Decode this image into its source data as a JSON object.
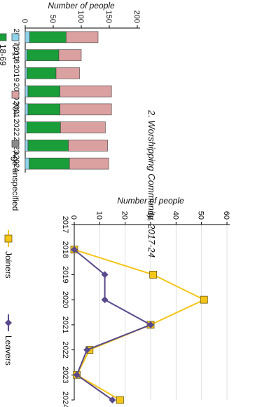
{
  "title": "2. Worshipping Community, 2017-24",
  "colors": {
    "age_0_17": "#8fd3ea",
    "age_18_69": "#1a9e3a",
    "age_70_plus": "#dba0a0",
    "age_unspecified": "#8a8a8a",
    "joiners": "#f5c518",
    "leavers": "#5a4a8c",
    "bar_outline": "#444444"
  },
  "chart_data": [
    {
      "type": "bar",
      "stacked": true,
      "categories": [
        "2017",
        "2018",
        "2019",
        "2020",
        "2021",
        "2022",
        "2023",
        "2024"
      ],
      "series": [
        {
          "name": "0-17",
          "color_key": "age_0_17",
          "values": [
            8,
            3,
            3,
            5,
            5,
            3,
            5,
            7
          ]
        },
        {
          "name": "18-69",
          "color_key": "age_18_69",
          "values": [
            65,
            57,
            52,
            57,
            57,
            60,
            72,
            72
          ]
        },
        {
          "name": "70+",
          "color_key": "age_70_plus",
          "values": [
            57,
            40,
            42,
            92,
            92,
            80,
            70,
            70
          ]
        },
        {
          "name": "Age unspecified",
          "color_key": "age_unspecified",
          "values": [
            0,
            0,
            0,
            0,
            0,
            0,
            0,
            0
          ]
        }
      ],
      "ylabel": "Number of people",
      "ylim": [
        0,
        200
      ],
      "yticks": [
        0,
        50,
        100,
        150,
        200
      ],
      "grid": false,
      "legend": "bottom"
    },
    {
      "type": "line",
      "categories": [
        "2017",
        "2018",
        "2019",
        "2020",
        "2021",
        "2022",
        "2023",
        "2024"
      ],
      "series": [
        {
          "name": "Joiners",
          "color_key": "joiners",
          "values": [
            null,
            0,
            31,
            51,
            30,
            6,
            1,
            18
          ]
        },
        {
          "name": "Leavers",
          "color_key": "leavers",
          "values": [
            null,
            0,
            12,
            12,
            30,
            5,
            1,
            15
          ]
        }
      ],
      "ylabel": "Number of people",
      "ylim": [
        0,
        60
      ],
      "yticks": [
        0,
        10,
        20,
        30,
        40,
        50,
        60
      ],
      "grid": true,
      "legend": "bottom"
    }
  ]
}
